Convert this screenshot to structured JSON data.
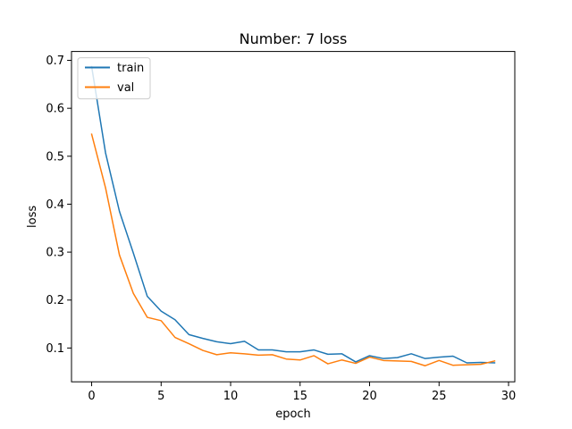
{
  "chart_data": {
    "type": "line",
    "title": "Number: 7 loss",
    "xlabel": "epoch",
    "ylabel": "loss",
    "xlim": [
      -1.45,
      30.45
    ],
    "ylim": [
      0.0295,
      0.7185
    ],
    "xticks": [
      0,
      5,
      10,
      15,
      20,
      25,
      30
    ],
    "yticks": [
      0.1,
      0.2,
      0.3,
      0.4,
      0.5,
      0.6,
      0.7
    ],
    "grid": false,
    "legend_position": "upper left",
    "x": [
      0,
      1,
      2,
      3,
      4,
      5,
      6,
      7,
      8,
      9,
      10,
      11,
      12,
      13,
      14,
      15,
      16,
      17,
      18,
      19,
      20,
      21,
      22,
      23,
      24,
      25,
      26,
      27,
      28,
      29
    ],
    "series": [
      {
        "name": "train",
        "color": "#1f77b4",
        "values": [
          0.687,
          0.507,
          0.385,
          0.298,
          0.208,
          0.177,
          0.159,
          0.128,
          0.12,
          0.113,
          0.109,
          0.114,
          0.096,
          0.096,
          0.092,
          0.092,
          0.096,
          0.087,
          0.088,
          0.071,
          0.084,
          0.078,
          0.08,
          0.088,
          0.078,
          0.081,
          0.083,
          0.069,
          0.07,
          0.069
        ]
      },
      {
        "name": "val",
        "color": "#ff7f0e",
        "values": [
          0.546,
          0.434,
          0.294,
          0.214,
          0.164,
          0.157,
          0.122,
          0.109,
          0.095,
          0.086,
          0.09,
          0.088,
          0.085,
          0.086,
          0.077,
          0.075,
          0.084,
          0.067,
          0.075,
          0.068,
          0.081,
          0.074,
          0.073,
          0.072,
          0.063,
          0.074,
          0.064,
          0.065,
          0.066,
          0.073
        ]
      }
    ]
  }
}
